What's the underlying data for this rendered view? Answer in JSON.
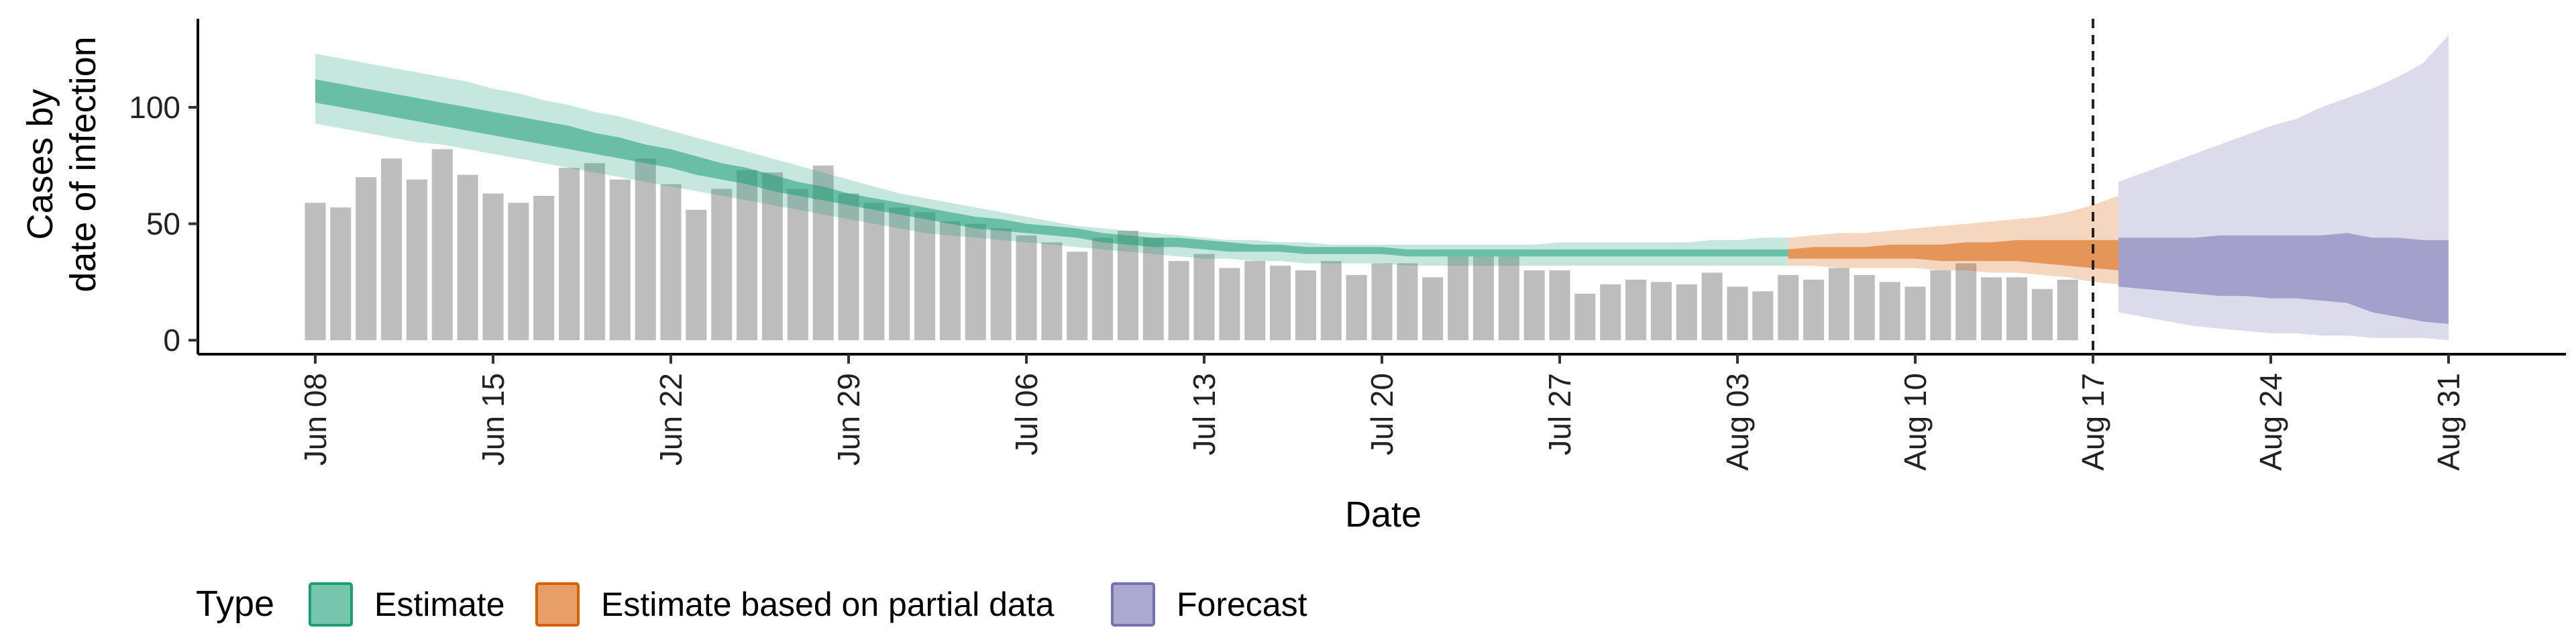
{
  "chart_data": {
    "type": "area",
    "xlabel": "Date",
    "ylabel_lines": [
      "Cases by",
      "date of infection"
    ],
    "ylim": [
      -6,
      138
    ],
    "yticks": [
      0,
      50,
      100
    ],
    "x_start": "2020-06-08",
    "x_end": "2020-08-31",
    "xticks": [
      {
        "date": "2020-06-08",
        "label": "Jun 08"
      },
      {
        "date": "2020-06-15",
        "label": "Jun 15"
      },
      {
        "date": "2020-06-22",
        "label": "Jun 22"
      },
      {
        "date": "2020-06-29",
        "label": "Jun 29"
      },
      {
        "date": "2020-07-06",
        "label": "Jul 06"
      },
      {
        "date": "2020-07-13",
        "label": "Jul 13"
      },
      {
        "date": "2020-07-20",
        "label": "Jul 20"
      },
      {
        "date": "2020-07-27",
        "label": "Jul 27"
      },
      {
        "date": "2020-08-03",
        "label": "Aug 03"
      },
      {
        "date": "2020-08-10",
        "label": "Aug 10"
      },
      {
        "date": "2020-08-17",
        "label": "Aug 17"
      },
      {
        "date": "2020-08-24",
        "label": "Aug 24"
      },
      {
        "date": "2020-08-31",
        "label": "Aug 31"
      }
    ],
    "reference_line": {
      "date": "2020-08-17",
      "style": "dashed"
    },
    "bars": {
      "color": "#bdbdbd",
      "start": "2020-06-08",
      "values": [
        59,
        57,
        70,
        78,
        69,
        82,
        71,
        63,
        59,
        62,
        74,
        76,
        69,
        78,
        67,
        56,
        65,
        73,
        72,
        65,
        75,
        63,
        59,
        57,
        55,
        51,
        50,
        48,
        45,
        42,
        38,
        44,
        47,
        44,
        34,
        37,
        31,
        34,
        32,
        30,
        34,
        28,
        33,
        33,
        27,
        36,
        36,
        36,
        30,
        30,
        20,
        24,
        26,
        25,
        24,
        29,
        23,
        21,
        28,
        26,
        31,
        28,
        25,
        23,
        30,
        33,
        27,
        27,
        22,
        26
      ]
    },
    "series": [
      {
        "name": "Estimate",
        "color": "#1b9e77",
        "start": "2020-06-08",
        "outer_lower": [
          93,
          91,
          89,
          87,
          85,
          84,
          82,
          80,
          78,
          76,
          74,
          72,
          70,
          68,
          66,
          64,
          62,
          60,
          58,
          56,
          54,
          52,
          50,
          48,
          46,
          45,
          44,
          43,
          42,
          41,
          40,
          39,
          38,
          37,
          36,
          35,
          35,
          34,
          34,
          33,
          33,
          33,
          33,
          32,
          32,
          32,
          32,
          32,
          32,
          32,
          32,
          32,
          32,
          32,
          32,
          32,
          32,
          32,
          32
        ],
        "outer_upper": [
          123,
          121,
          119,
          117,
          115,
          113,
          111,
          108,
          106,
          103,
          101,
          98,
          96,
          93,
          90,
          87,
          84,
          81,
          78,
          75,
          72,
          69,
          66,
          63,
          61,
          59,
          57,
          55,
          53,
          51,
          49,
          48,
          47,
          46,
          45,
          44,
          43,
          43,
          42,
          42,
          41,
          41,
          41,
          41,
          41,
          41,
          41,
          41,
          41,
          42,
          42,
          42,
          42,
          42,
          42,
          43,
          43,
          44,
          44
        ],
        "inner_lower": [
          102,
          100,
          98,
          96,
          94,
          92,
          90,
          88,
          86,
          84,
          82,
          80,
          78,
          76,
          74,
          71,
          69,
          67,
          64,
          62,
          60,
          58,
          56,
          54,
          52,
          50,
          48,
          47,
          46,
          45,
          44,
          42,
          41,
          40,
          40,
          39,
          38,
          38,
          38,
          37,
          37,
          37,
          37,
          36,
          36,
          36,
          36,
          36,
          36,
          36,
          36,
          36,
          36,
          36,
          36,
          36,
          36,
          36,
          36
        ],
        "inner_upper": [
          112,
          110,
          108,
          106,
          104,
          102,
          100,
          98,
          96,
          94,
          92,
          89,
          87,
          84,
          82,
          79,
          76,
          74,
          71,
          68,
          66,
          63,
          61,
          59,
          57,
          55,
          53,
          52,
          50,
          49,
          48,
          46,
          45,
          44,
          44,
          43,
          42,
          41,
          41,
          40,
          40,
          40,
          40,
          39,
          39,
          39,
          39,
          39,
          39,
          39,
          39,
          39,
          39,
          39,
          39,
          39,
          39,
          39,
          39
        ]
      },
      {
        "name": "Estimate based on partial data",
        "color": "#d95f02",
        "start": "2020-08-05",
        "outer_lower": [
          32,
          32,
          31,
          31,
          31,
          31,
          30,
          30,
          29,
          29,
          28,
          27,
          25,
          24
        ],
        "outer_upper": [
          44,
          45,
          46,
          46,
          47,
          48,
          49,
          50,
          51,
          52,
          53,
          55,
          58,
          62
        ],
        "inner_lower": [
          35,
          35,
          35,
          35,
          35,
          35,
          34,
          34,
          34,
          34,
          33,
          32,
          31,
          30
        ],
        "inner_upper": [
          39,
          40,
          40,
          40,
          41,
          41,
          41,
          42,
          42,
          43,
          43,
          43,
          43,
          43
        ]
      },
      {
        "name": "Forecast",
        "color": "#7570b3",
        "start": "2020-08-18",
        "outer_lower": [
          12,
          10,
          8,
          6,
          5,
          4,
          3,
          3,
          2,
          2,
          1,
          1,
          1,
          0
        ],
        "outer_upper": [
          68,
          72,
          76,
          80,
          84,
          88,
          92,
          95,
          100,
          104,
          108,
          113,
          119,
          131
        ],
        "inner_lower": [
          23,
          22,
          21,
          20,
          19,
          19,
          18,
          18,
          17,
          16,
          12,
          10,
          8,
          7
        ],
        "inner_upper": [
          44,
          44,
          44,
          44,
          45,
          45,
          45,
          45,
          45,
          46,
          44,
          44,
          43,
          43
        ]
      }
    ],
    "legend": {
      "title": "Type",
      "placement": "bottom-left",
      "entries": [
        "Estimate",
        "Estimate based on partial data",
        "Forecast"
      ]
    }
  }
}
